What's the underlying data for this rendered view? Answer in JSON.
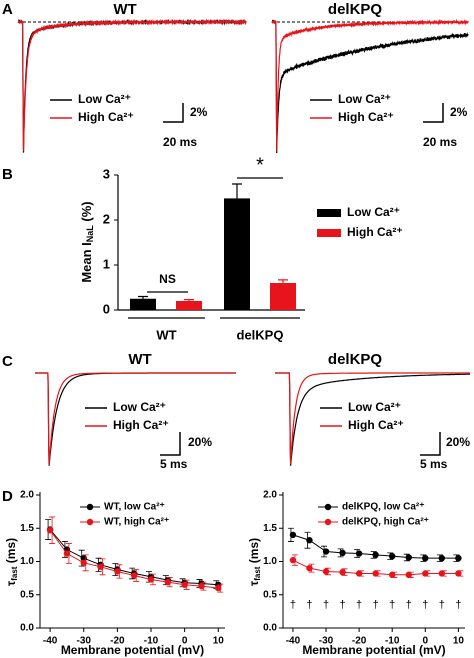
{
  "chart_data": [
    {
      "type": "trace",
      "label": "A",
      "title": "WT",
      "series": [
        {
          "name": "Low Ca²⁺",
          "color": "#000000"
        },
        {
          "name": "High Ca²⁺",
          "color": "#e8141b"
        }
      ],
      "scale_y": "2%",
      "scale_x": "20 ms"
    },
    {
      "type": "trace",
      "title": "delKPQ",
      "series": [
        {
          "name": "Low Ca²⁺",
          "color": "#000000"
        },
        {
          "name": "High Ca²⁺",
          "color": "#e8141b"
        }
      ],
      "scale_y": "2%",
      "scale_x": "20 ms"
    },
    {
      "type": "bar",
      "label": "B",
      "ylabel": [
        "Mean I",
        "NaL",
        " (%)"
      ],
      "categories": [
        "WT",
        "delKPQ"
      ],
      "series": [
        {
          "name": "Low Ca²⁺",
          "color": "#000000",
          "values": [
            0.25,
            2.48
          ],
          "errors": [
            0.05,
            0.32
          ]
        },
        {
          "name": "High Ca²⁺",
          "color": "#e8141b",
          "values": [
            0.2,
            0.6
          ],
          "errors": [
            0.03,
            0.07
          ]
        }
      ],
      "ylim": [
        0,
        3
      ],
      "yticks": [
        0,
        1,
        2,
        3
      ],
      "annotations": [
        "NS",
        "*"
      ]
    },
    {
      "type": "trace",
      "label": "C",
      "title": "WT",
      "series": [
        {
          "name": "Low Ca²⁺",
          "color": "#000000"
        },
        {
          "name": "High Ca²⁺",
          "color": "#e8141b"
        }
      ],
      "scale_y": "20%",
      "scale_x": "5 ms"
    },
    {
      "type": "trace",
      "title": "delKPQ",
      "series": [
        {
          "name": "Low Ca²⁺",
          "color": "#000000"
        },
        {
          "name": "High Ca²⁺",
          "color": "#e8141b"
        }
      ],
      "scale_y": "20%",
      "scale_x": "5 ms"
    },
    {
      "type": "line",
      "label": "D",
      "ylabel": [
        "τ",
        "fast",
        " (ms)"
      ],
      "xlabel": "Membrane potential (mV)",
      "x": [
        -40,
        -35,
        -30,
        -25,
        -20,
        -15,
        -10,
        -5,
        0,
        5,
        10
      ],
      "xlim": [
        -43,
        12
      ],
      "xticks": [
        -40,
        -30,
        -20,
        -10,
        0,
        10
      ],
      "ylim": [
        0,
        2
      ],
      "yticks": [
        {
          "value": 0,
          "label": "0.0"
        },
        {
          "value": 0.5,
          "label": "0.5"
        },
        {
          "value": 1,
          "label": "1.0"
        },
        {
          "value": 1.5,
          "label": "1.5"
        },
        {
          "value": 2,
          "label": "2.0"
        }
      ],
      "series": [
        {
          "name": "WT, low Ca²⁺",
          "color": "#000000",
          "values": [
            1.48,
            1.18,
            1.05,
            0.95,
            0.88,
            0.82,
            0.77,
            0.72,
            0.68,
            0.67,
            0.65
          ],
          "errors": [
            0.15,
            0.12,
            0.12,
            0.1,
            0.09,
            0.08,
            0.08,
            0.07,
            0.06,
            0.06,
            0.06
          ]
        },
        {
          "name": "WT, high Ca²⁺",
          "color": "#e8141b",
          "values": [
            1.47,
            1.12,
            0.98,
            0.92,
            0.85,
            0.79,
            0.73,
            0.69,
            0.65,
            0.63,
            0.6
          ],
          "errors": [
            0.2,
            0.15,
            0.12,
            0.12,
            0.1,
            0.09,
            0.08,
            0.07,
            0.07,
            0.06,
            0.06
          ]
        }
      ]
    },
    {
      "type": "line",
      "ylabel": [
        "τ",
        "fast",
        " (ms)"
      ],
      "xlabel": "Membrane potential (mV)",
      "x": [
        -40,
        -35,
        -30,
        -25,
        -20,
        -15,
        -10,
        -5,
        0,
        5,
        10
      ],
      "xlim": [
        -43,
        12
      ],
      "xticks": [
        -40,
        -30,
        -20,
        -10,
        0,
        10
      ],
      "ylim": [
        0,
        2
      ],
      "yticks": [
        {
          "value": 0,
          "label": "0.0"
        },
        {
          "value": 0.5,
          "label": "0.5"
        },
        {
          "value": 1,
          "label": "1.0"
        },
        {
          "value": 1.5,
          "label": "1.5"
        },
        {
          "value": 2,
          "label": "2.0"
        }
      ],
      "series": [
        {
          "name": "delKPQ, low Ca²⁺",
          "color": "#000000",
          "values": [
            1.4,
            1.32,
            1.15,
            1.13,
            1.12,
            1.1,
            1.08,
            1.06,
            1.05,
            1.05,
            1.05
          ],
          "errors": [
            0.1,
            0.12,
            0.08,
            0.06,
            0.06,
            0.05,
            0.05,
            0.05,
            0.05,
            0.05,
            0.05
          ]
        },
        {
          "name": "delKPQ, high Ca²⁺",
          "color": "#e8141b",
          "values": [
            1.02,
            0.9,
            0.85,
            0.84,
            0.82,
            0.82,
            0.8,
            0.8,
            0.82,
            0.82,
            0.82
          ],
          "errors": [
            0.08,
            0.06,
            0.05,
            0.05,
            0.04,
            0.04,
            0.04,
            0.04,
            0.04,
            0.04,
            0.04
          ]
        }
      ],
      "markers": [
        "†",
        "†",
        "†",
        "†",
        "†",
        "†",
        "†",
        "†",
        "†",
        "†",
        "†"
      ]
    }
  ]
}
